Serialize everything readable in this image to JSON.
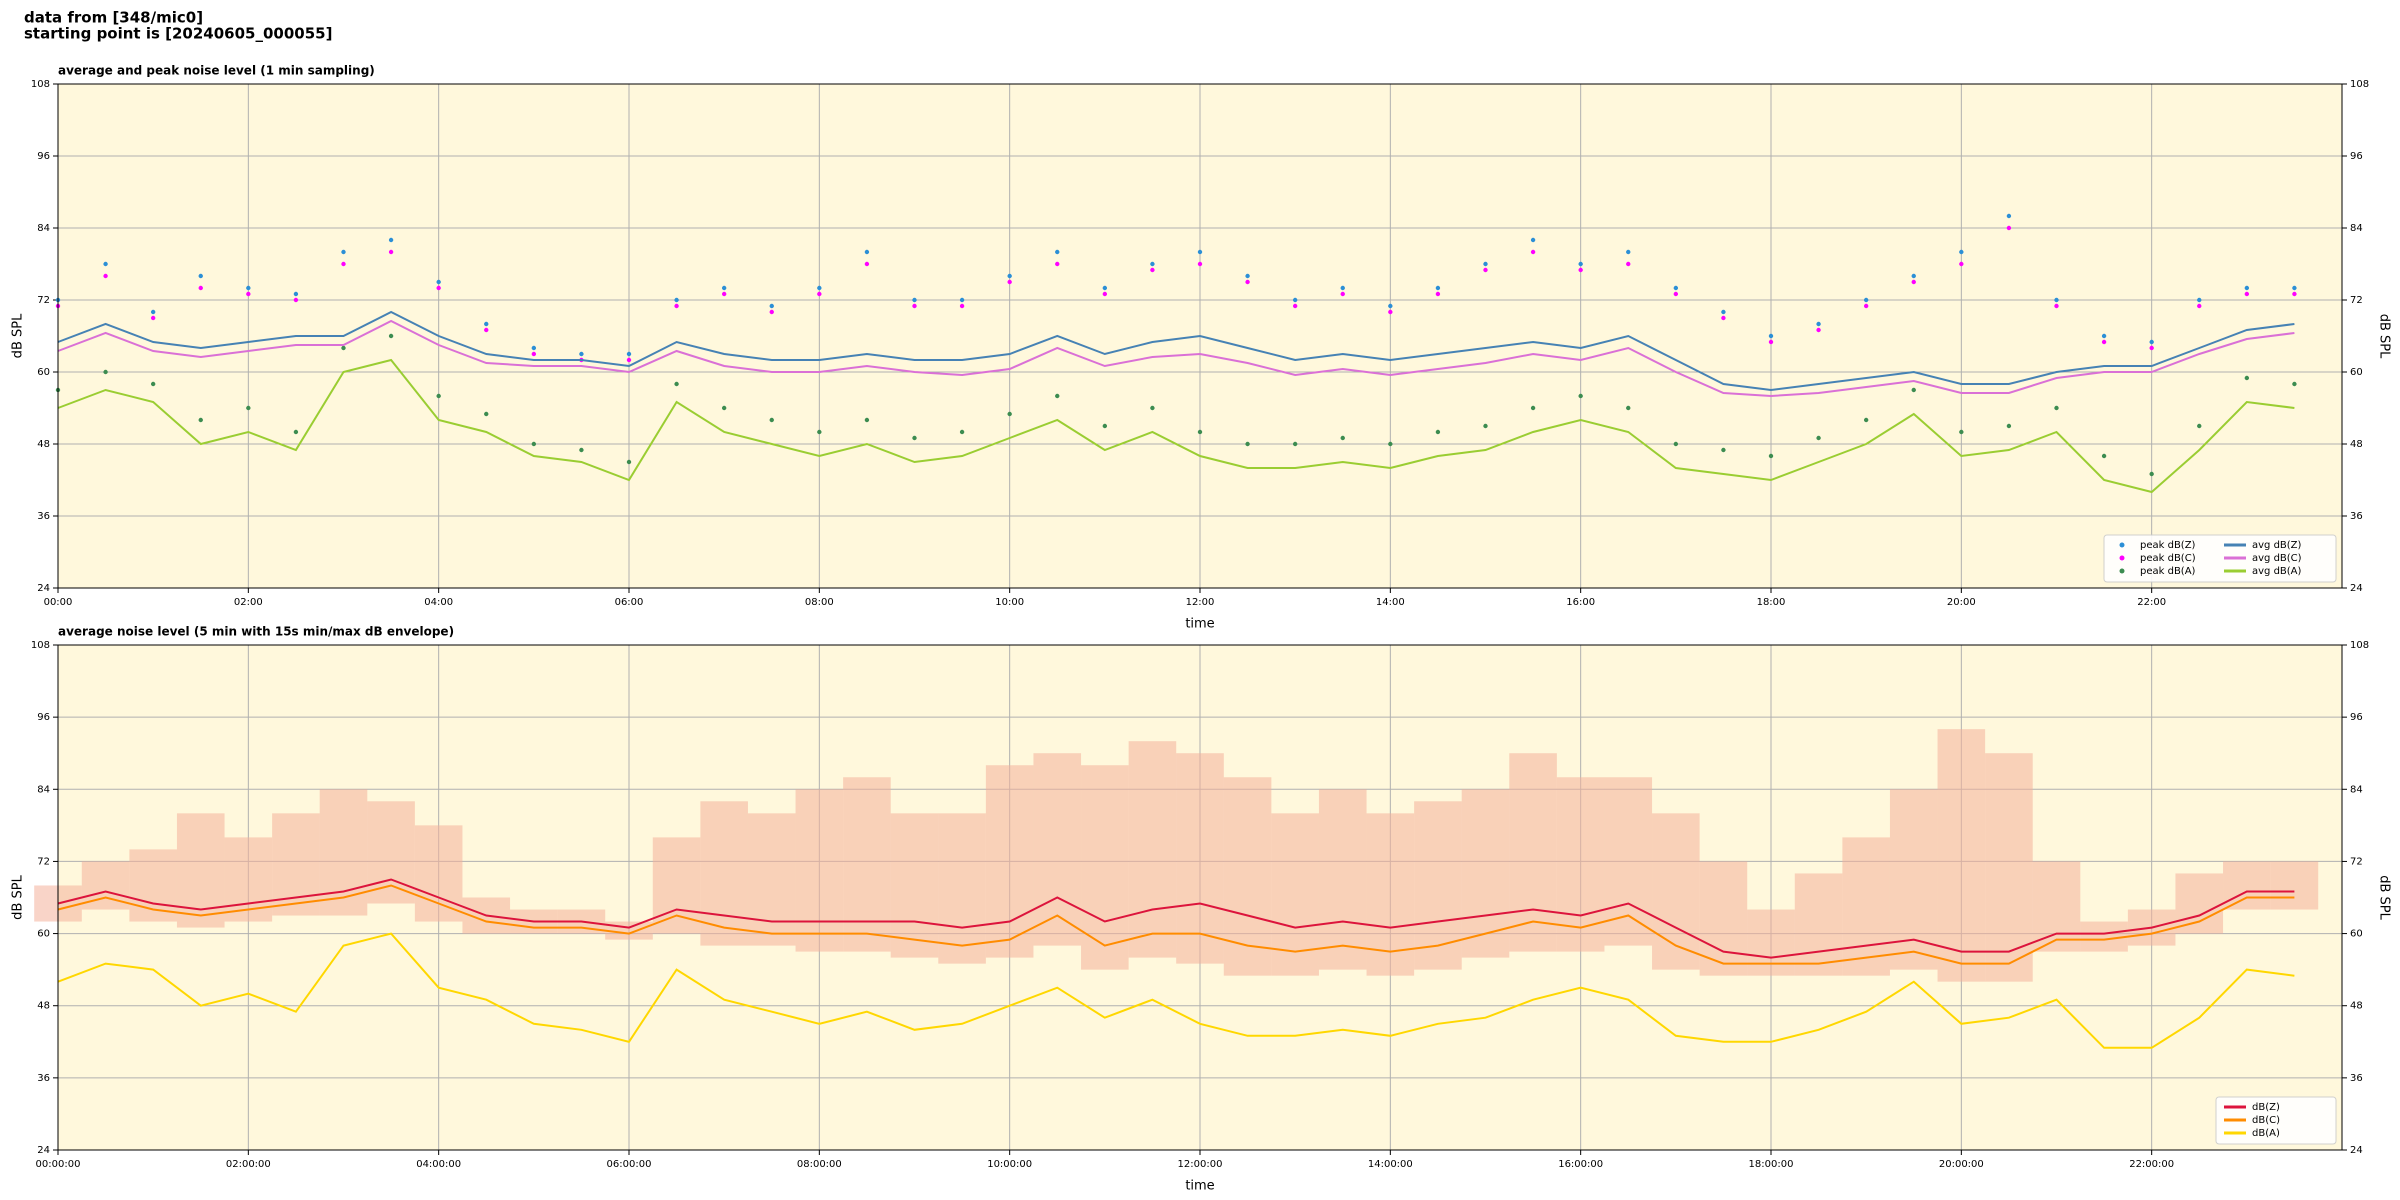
{
  "header": {
    "source": "data from [348/mic0]",
    "start": "starting point is [20240605_000055]"
  },
  "chart_data": [
    {
      "type": "line",
      "title": "average and peak noise level (1 min sampling)",
      "xlabel": "time",
      "ylabel": "dB SPL",
      "y2label": "dB SPL",
      "x": [
        0,
        0.5,
        1,
        1.5,
        2,
        2.5,
        3,
        3.5,
        4,
        4.5,
        5,
        5.5,
        6,
        6.5,
        7,
        7.5,
        8,
        8.5,
        9,
        9.5,
        10,
        10.5,
        11,
        11.5,
        12,
        12.5,
        13,
        13.5,
        14,
        14.5,
        15,
        15.5,
        16,
        16.5,
        17,
        17.5,
        18,
        18.5,
        19,
        19.5,
        20,
        20.5,
        21,
        21.5,
        22,
        22.5,
        23,
        23.5
      ],
      "xlim": [
        0,
        24
      ],
      "xticks": [
        {
          "value": 0,
          "label": "00:00"
        },
        {
          "value": 2,
          "label": "02:00"
        },
        {
          "value": 4,
          "label": "04:00"
        },
        {
          "value": 6,
          "label": "06:00"
        },
        {
          "value": 8,
          "label": "08:00"
        },
        {
          "value": 10,
          "label": "10:00"
        },
        {
          "value": 12,
          "label": "12:00"
        },
        {
          "value": 14,
          "label": "14:00"
        },
        {
          "value": 16,
          "label": "16:00"
        },
        {
          "value": 18,
          "label": "18:00"
        },
        {
          "value": 20,
          "label": "20:00"
        },
        {
          "value": 22,
          "label": "22:00"
        }
      ],
      "ylim": [
        24,
        108
      ],
      "yticks": [
        24,
        36,
        48,
        60,
        72,
        84,
        96,
        108
      ],
      "y2lim": [
        24,
        108
      ],
      "y2ticks": [
        24,
        36,
        48,
        60,
        72,
        84,
        96,
        108
      ],
      "grid": true,
      "legend": "lower right",
      "legend_columns": 2,
      "series": [
        {
          "name": "peak dB(Z)",
          "style": "scatter",
          "color": "#2b8fd6",
          "values": [
            72,
            78,
            70,
            76,
            74,
            73,
            80,
            82,
            75,
            68,
            64,
            63,
            63,
            72,
            74,
            71,
            74,
            80,
            72,
            72,
            76,
            80,
            74,
            78,
            80,
            76,
            72,
            74,
            71,
            74,
            78,
            82,
            78,
            80,
            74,
            70,
            66,
            68,
            72,
            76,
            80,
            86,
            72,
            66,
            65,
            72,
            74,
            74
          ]
        },
        {
          "name": "peak dB(C)",
          "style": "scatter",
          "color": "#ff00ff",
          "values": [
            71,
            76,
            69,
            74,
            73,
            72,
            78,
            80,
            74,
            67,
            63,
            62,
            62,
            71,
            73,
            70,
            73,
            78,
            71,
            71,
            75,
            78,
            73,
            77,
            78,
            75,
            71,
            73,
            70,
            73,
            77,
            80,
            77,
            78,
            73,
            69,
            65,
            67,
            71,
            75,
            78,
            84,
            71,
            65,
            64,
            71,
            73,
            73
          ]
        },
        {
          "name": "peak dB(A)",
          "style": "scatter",
          "color": "#3c8c50",
          "values": [
            57,
            60,
            58,
            52,
            54,
            50,
            64,
            66,
            56,
            53,
            48,
            47,
            45,
            58,
            54,
            52,
            50,
            52,
            49,
            50,
            53,
            56,
            51,
            54,
            50,
            48,
            48,
            49,
            48,
            50,
            51,
            54,
            56,
            54,
            48,
            47,
            46,
            49,
            52,
            57,
            50,
            51,
            54,
            46,
            43,
            51,
            59,
            58
          ]
        },
        {
          "name": "avg dB(Z)",
          "style": "line",
          "color": "#4682b4",
          "values": [
            65,
            68,
            65,
            64,
            65,
            66,
            66,
            70,
            66,
            63,
            62,
            62,
            61,
            65,
            63,
            62,
            62,
            63,
            62,
            62,
            63,
            66,
            63,
            65,
            66,
            64,
            62,
            63,
            62,
            63,
            64,
            65,
            64,
            66,
            62,
            58,
            57,
            58,
            59,
            60,
            58,
            58,
            60,
            61,
            61,
            64,
            67,
            68
          ]
        },
        {
          "name": "avg dB(C)",
          "style": "line",
          "color": "#da70d6",
          "values": [
            63.5,
            66.5,
            63.5,
            62.5,
            63.5,
            64.5,
            64.5,
            68.5,
            64.5,
            61.5,
            61,
            61,
            60,
            63.5,
            61,
            60,
            60,
            61,
            60,
            59.5,
            60.5,
            64,
            61,
            62.5,
            63,
            61.5,
            59.5,
            60.5,
            59.5,
            60.5,
            61.5,
            63,
            62,
            64,
            60,
            56.5,
            56,
            56.5,
            57.5,
            58.5,
            56.5,
            56.5,
            59,
            60,
            60,
            63,
            65.5,
            66.5
          ]
        },
        {
          "name": "avg dB(A)",
          "style": "line",
          "color": "#9acd32",
          "values": [
            54,
            57,
            55,
            48,
            50,
            47,
            60,
            62,
            52,
            50,
            46,
            45,
            42,
            55,
            50,
            48,
            46,
            48,
            45,
            46,
            49,
            52,
            47,
            50,
            46,
            44,
            44,
            45,
            44,
            46,
            47,
            50,
            52,
            50,
            44,
            43,
            42,
            45,
            48,
            53,
            46,
            47,
            50,
            42,
            40,
            47,
            55,
            54
          ]
        }
      ]
    },
    {
      "type": "line",
      "title": "average noise level (5 min with 15s min/max dB envelope)",
      "xlabel": "time",
      "ylabel": "dB SPL",
      "y2label": "dB SPL",
      "x": [
        0,
        0.5,
        1,
        1.5,
        2,
        2.5,
        3,
        3.5,
        4,
        4.5,
        5,
        5.5,
        6,
        6.5,
        7,
        7.5,
        8,
        8.5,
        9,
        9.5,
        10,
        10.5,
        11,
        11.5,
        12,
        12.5,
        13,
        13.5,
        14,
        14.5,
        15,
        15.5,
        16,
        16.5,
        17,
        17.5,
        18,
        18.5,
        19,
        19.5,
        20,
        20.5,
        21,
        21.5,
        22,
        22.5,
        23,
        23.5
      ],
      "xlim": [
        0,
        24
      ],
      "xticks": [
        {
          "value": 0,
          "label": "00:00:00"
        },
        {
          "value": 2,
          "label": "02:00:00"
        },
        {
          "value": 4,
          "label": "04:00:00"
        },
        {
          "value": 6,
          "label": "06:00:00"
        },
        {
          "value": 8,
          "label": "08:00:00"
        },
        {
          "value": 10,
          "label": "10:00:00"
        },
        {
          "value": 12,
          "label": "12:00:00"
        },
        {
          "value": 14,
          "label": "14:00:00"
        },
        {
          "value": 16,
          "label": "16:00:00"
        },
        {
          "value": 18,
          "label": "18:00:00"
        },
        {
          "value": 20,
          "label": "20:00:00"
        },
        {
          "value": 22,
          "label": "22:00:00"
        }
      ],
      "ylim": [
        24,
        108
      ],
      "yticks": [
        24,
        36,
        48,
        60,
        72,
        84,
        96,
        108
      ],
      "y2lim": [
        24,
        108
      ],
      "y2ticks": [
        24,
        36,
        48,
        60,
        72,
        84,
        96,
        108
      ],
      "grid": true,
      "legend": "lower right",
      "legend_columns": 1,
      "envelope": {
        "color": "#f4b09a",
        "lower": [
          62,
          64,
          62,
          61,
          62,
          63,
          63,
          65,
          62,
          60,
          60,
          60,
          59,
          60,
          58,
          58,
          57,
          57,
          56,
          55,
          56,
          58,
          54,
          56,
          55,
          53,
          53,
          54,
          53,
          54,
          56,
          57,
          57,
          58,
          54,
          53,
          53,
          53,
          53,
          54,
          52,
          52,
          57,
          57,
          58,
          60,
          64,
          64
        ],
        "upper": [
          68,
          72,
          74,
          80,
          76,
          80,
          84,
          82,
          78,
          66,
          64,
          64,
          62,
          76,
          82,
          80,
          84,
          86,
          80,
          80,
          88,
          90,
          88,
          92,
          90,
          86,
          80,
          84,
          80,
          82,
          84,
          90,
          86,
          86,
          80,
          72,
          64,
          70,
          76,
          84,
          94,
          90,
          72,
          62,
          64,
          70,
          72,
          72
        ]
      },
      "series": [
        {
          "name": "dB(Z)",
          "style": "line",
          "color": "#dc143c",
          "values": [
            65,
            67,
            65,
            64,
            65,
            66,
            67,
            69,
            66,
            63,
            62,
            62,
            61,
            64,
            63,
            62,
            62,
            62,
            62,
            61,
            62,
            66,
            62,
            64,
            65,
            63,
            61,
            62,
            61,
            62,
            63,
            64,
            63,
            65,
            61,
            57,
            56,
            57,
            58,
            59,
            57,
            57,
            60,
            60,
            61,
            63,
            67,
            67
          ]
        },
        {
          "name": "dB(C)",
          "style": "line",
          "color": "#ff8c00",
          "values": [
            64,
            66,
            64,
            63,
            64,
            65,
            66,
            68,
            65,
            62,
            61,
            61,
            60,
            63,
            61,
            60,
            60,
            60,
            59,
            58,
            59,
            63,
            58,
            60,
            60,
            58,
            57,
            58,
            57,
            58,
            60,
            62,
            61,
            63,
            58,
            55,
            55,
            55,
            56,
            57,
            55,
            55,
            59,
            59,
            60,
            62,
            66,
            66
          ]
        },
        {
          "name": "dB(A)",
          "style": "line",
          "color": "#ffd700",
          "values": [
            52,
            55,
            54,
            48,
            50,
            47,
            58,
            60,
            51,
            49,
            45,
            44,
            42,
            54,
            49,
            47,
            45,
            47,
            44,
            45,
            48,
            51,
            46,
            49,
            45,
            43,
            43,
            44,
            43,
            45,
            46,
            49,
            51,
            49,
            43,
            42,
            42,
            44,
            47,
            52,
            45,
            46,
            49,
            41,
            41,
            46,
            54,
            53
          ]
        }
      ]
    }
  ]
}
